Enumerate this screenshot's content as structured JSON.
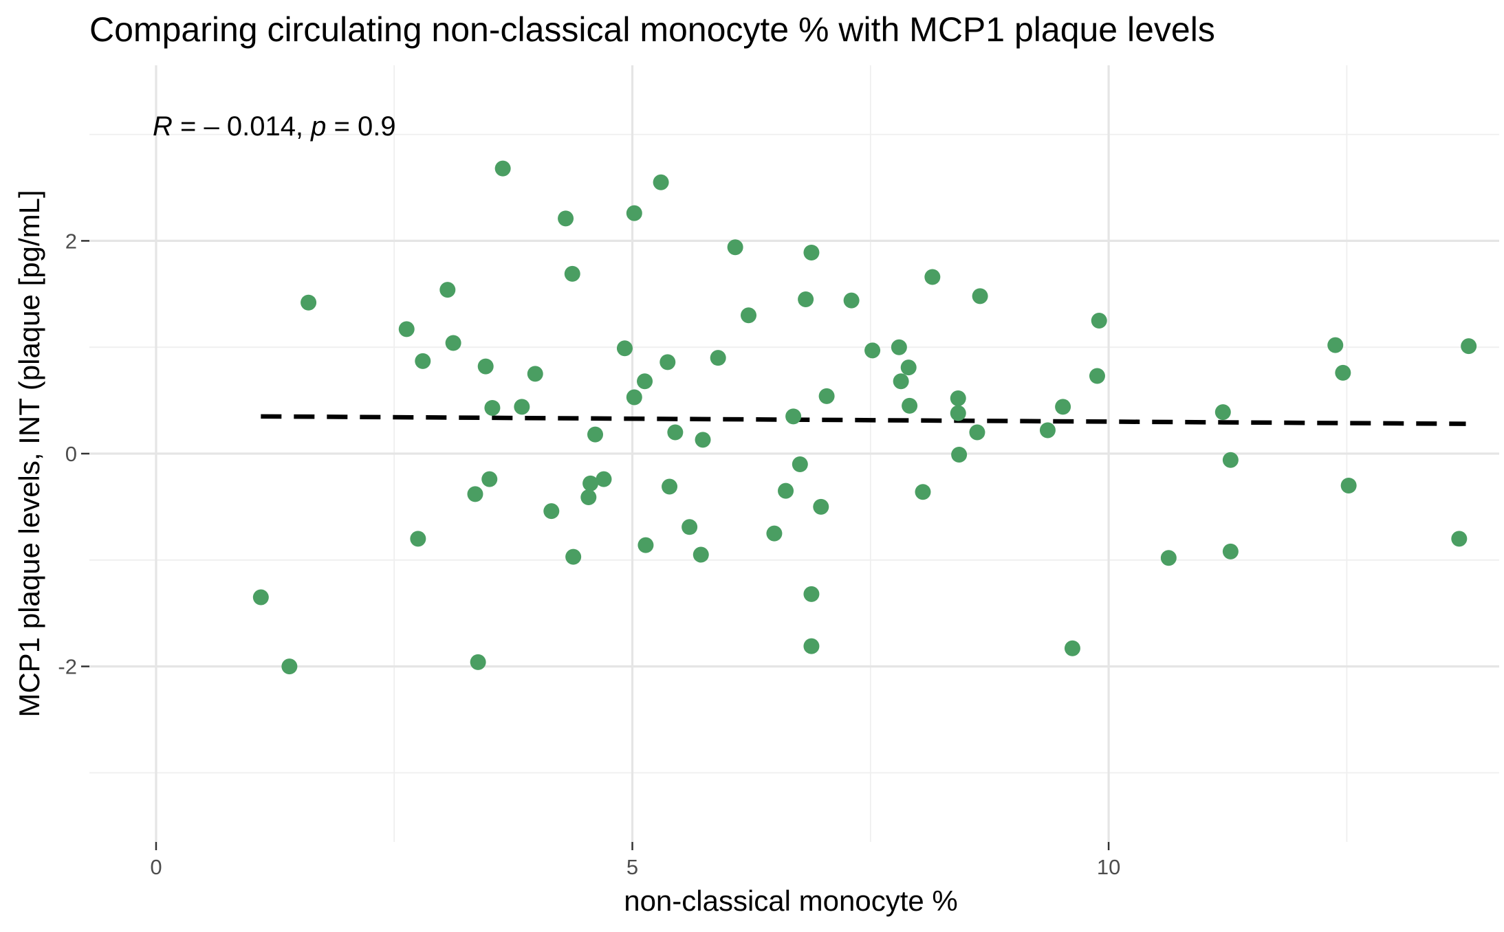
{
  "chart_data": {
    "type": "scatter",
    "title": "Comparing circulating non-classical monocyte % with MCP1 plaque levels",
    "xlabel": "non-classical monocyte %",
    "ylabel": "MCP1 plaque levels, INT (plaque [pg/mL]",
    "xlim": [
      -0.7,
      14.1
    ],
    "ylim": [
      -3.65,
      3.65
    ],
    "x_ticks": [
      0,
      5,
      10
    ],
    "x_tick_labels": [
      "0",
      "5",
      "10"
    ],
    "x_minor_ticks": [
      2.5,
      7.5,
      12.5
    ],
    "y_ticks": [
      -2,
      0,
      2
    ],
    "y_tick_labels": [
      "-2",
      "0",
      "2"
    ],
    "y_minor_ticks": [
      -3,
      -1,
      1,
      3
    ],
    "grid": true,
    "point_color": "#4a9e62",
    "line_color": "#000000",
    "annotation": {
      "r_symbol": "R",
      "r_text": " = – 0.014, ",
      "p_symbol": "p",
      "p_text": " = 0.9"
    },
    "regression_line": {
      "x": [
        1.1,
        13.75
      ],
      "y": [
        0.35,
        0.28
      ]
    },
    "points": [
      {
        "x": 1.1,
        "y": -1.35
      },
      {
        "x": 1.4,
        "y": -2.0
      },
      {
        "x": 1.6,
        "y": 1.42
      },
      {
        "x": 2.63,
        "y": 1.17
      },
      {
        "x": 2.75,
        "y": -0.8
      },
      {
        "x": 2.8,
        "y": 0.87
      },
      {
        "x": 3.06,
        "y": 1.54
      },
      {
        "x": 3.12,
        "y": 1.04
      },
      {
        "x": 3.35,
        "y": -0.38
      },
      {
        "x": 3.38,
        "y": -1.96
      },
      {
        "x": 3.46,
        "y": 0.82
      },
      {
        "x": 3.5,
        "y": -0.24
      },
      {
        "x": 3.53,
        "y": 0.43
      },
      {
        "x": 3.64,
        "y": 2.68
      },
      {
        "x": 3.84,
        "y": 0.44
      },
      {
        "x": 3.98,
        "y": 0.75
      },
      {
        "x": 4.15,
        "y": -0.54
      },
      {
        "x": 4.3,
        "y": 2.21
      },
      {
        "x": 4.37,
        "y": 1.69
      },
      {
        "x": 4.38,
        "y": -0.97
      },
      {
        "x": 4.54,
        "y": -0.41
      },
      {
        "x": 4.56,
        "y": -0.28
      },
      {
        "x": 4.61,
        "y": 0.18
      },
      {
        "x": 4.7,
        "y": -0.24
      },
      {
        "x": 4.92,
        "y": 0.99
      },
      {
        "x": 5.02,
        "y": 2.26
      },
      {
        "x": 5.02,
        "y": 0.53
      },
      {
        "x": 5.13,
        "y": 0.68
      },
      {
        "x": 5.14,
        "y": -0.86
      },
      {
        "x": 5.3,
        "y": 2.55
      },
      {
        "x": 5.37,
        "y": 0.86
      },
      {
        "x": 5.39,
        "y": -0.31
      },
      {
        "x": 5.45,
        "y": 0.2
      },
      {
        "x": 5.6,
        "y": -0.69
      },
      {
        "x": 5.72,
        "y": -0.95
      },
      {
        "x": 5.74,
        "y": 0.13
      },
      {
        "x": 5.9,
        "y": 0.9
      },
      {
        "x": 6.08,
        "y": 1.94
      },
      {
        "x": 6.22,
        "y": 1.3
      },
      {
        "x": 6.49,
        "y": -0.75
      },
      {
        "x": 6.61,
        "y": -0.35
      },
      {
        "x": 6.69,
        "y": 0.35
      },
      {
        "x": 6.76,
        "y": -0.1
      },
      {
        "x": 6.82,
        "y": 1.45
      },
      {
        "x": 6.88,
        "y": 1.89
      },
      {
        "x": 6.88,
        "y": -1.32
      },
      {
        "x": 6.88,
        "y": -1.81
      },
      {
        "x": 6.98,
        "y": -0.5
      },
      {
        "x": 7.04,
        "y": 0.54
      },
      {
        "x": 7.3,
        "y": 1.44
      },
      {
        "x": 7.52,
        "y": 0.97
      },
      {
        "x": 7.8,
        "y": 1.0
      },
      {
        "x": 7.82,
        "y": 0.68
      },
      {
        "x": 7.9,
        "y": 0.81
      },
      {
        "x": 7.91,
        "y": 0.45
      },
      {
        "x": 8.05,
        "y": -0.36
      },
      {
        "x": 8.15,
        "y": 1.66
      },
      {
        "x": 8.42,
        "y": 0.52
      },
      {
        "x": 8.42,
        "y": 0.38
      },
      {
        "x": 8.43,
        "y": -0.01
      },
      {
        "x": 8.62,
        "y": 0.2
      },
      {
        "x": 8.65,
        "y": 1.48
      },
      {
        "x": 9.36,
        "y": 0.22
      },
      {
        "x": 9.52,
        "y": 0.44
      },
      {
        "x": 9.62,
        "y": -1.83
      },
      {
        "x": 9.88,
        "y": 0.73
      },
      {
        "x": 9.9,
        "y": 1.25
      },
      {
        "x": 10.63,
        "y": -0.98
      },
      {
        "x": 11.2,
        "y": 0.39
      },
      {
        "x": 11.28,
        "y": -0.06
      },
      {
        "x": 11.28,
        "y": -0.92
      },
      {
        "x": 12.38,
        "y": 1.02
      },
      {
        "x": 12.46,
        "y": 0.76
      },
      {
        "x": 12.52,
        "y": -0.3
      },
      {
        "x": 13.68,
        "y": -0.8
      },
      {
        "x": 13.78,
        "y": 1.01
      }
    ]
  }
}
